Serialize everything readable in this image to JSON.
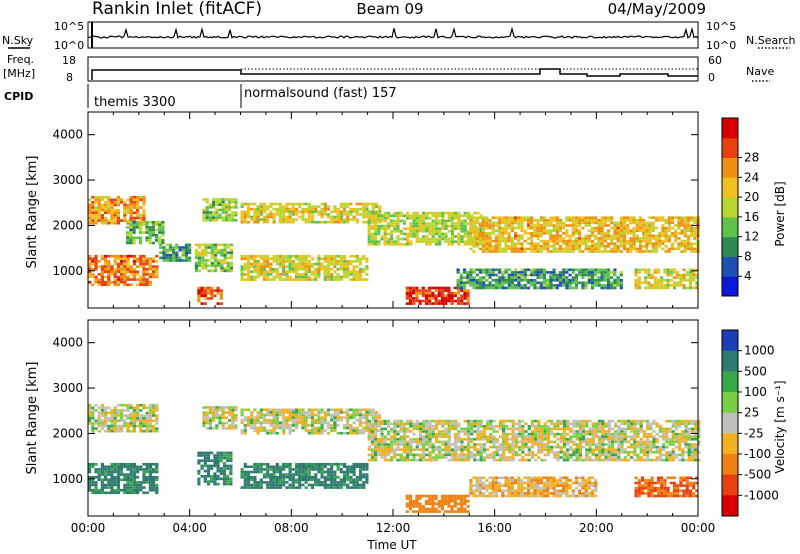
{
  "header": {
    "station": "Rankin Inlet (fitACF)",
    "beam": "Beam 09",
    "date": "04/May/2009"
  },
  "summary_panels": {
    "nsky_label": "N.Sky",
    "nsearch_label": "N.Search",
    "noise_tick_top": "10^5",
    "noise_tick_bottom": "10^0",
    "noise_tick_top_right": "10^5",
    "noise_tick_bottom_right": "10^0",
    "freq_label": "Freq.",
    "freq_unit": "[MHz]",
    "freq_tick_top": "18",
    "freq_tick_bottom": "8",
    "nave_label": "Nave",
    "nave_tick_top": "60",
    "nave_tick_bottom": "0",
    "cpid_label": "CPID",
    "cpid_modes": [
      {
        "label": "themis 3300",
        "start_hour": 0
      },
      {
        "label": "normalsound (fast) 157",
        "start_hour": 6
      }
    ]
  },
  "chart_data": [
    {
      "type": "heatmap",
      "title": "",
      "quantity": "Power",
      "xlabel": "",
      "ylabel": "Slant Range [km]",
      "xlim_hours": [
        0,
        24
      ],
      "ylim_km": [
        180,
        4500
      ],
      "yticks": [
        "1000",
        "2000",
        "3000",
        "4000"
      ],
      "colorbar": {
        "label": "Power [dB]",
        "ticks": [
          "4",
          "8",
          "12",
          "16",
          "20",
          "24",
          "28"
        ],
        "colors": [
          "#0a1ad8",
          "#1e4fb4",
          "#2f8a52",
          "#5fc24a",
          "#b8d630",
          "#f0c020",
          "#f09010",
          "#e84010",
          "#d80000"
        ]
      },
      "echo_bands": [
        {
          "t0": 0.0,
          "t1": 2.2,
          "r0": 2050,
          "r1": 2650,
          "power_db": 22
        },
        {
          "t0": 0.0,
          "t1": 2.7,
          "r0": 700,
          "r1": 1350,
          "power_db": 24
        },
        {
          "t0": 1.5,
          "t1": 3.0,
          "r0": 1600,
          "r1": 2100,
          "power_db": 12
        },
        {
          "t0": 2.8,
          "t1": 4.0,
          "r0": 1200,
          "r1": 1600,
          "power_db": 10
        },
        {
          "t0": 4.2,
          "t1": 5.6,
          "r0": 1000,
          "r1": 1600,
          "power_db": 14
        },
        {
          "t0": 4.3,
          "t1": 5.2,
          "r0": 250,
          "r1": 650,
          "power_db": 26
        },
        {
          "t0": 4.5,
          "t1": 5.8,
          "r0": 2100,
          "r1": 2600,
          "power_db": 14
        },
        {
          "t0": 6.0,
          "t1": 11.5,
          "r0": 2050,
          "r1": 2500,
          "power_db": 18
        },
        {
          "t0": 6.0,
          "t1": 11.0,
          "r0": 800,
          "r1": 1350,
          "power_db": 18
        },
        {
          "t0": 11.0,
          "t1": 15.5,
          "r0": 1600,
          "r1": 2300,
          "power_db": 16
        },
        {
          "t0": 12.5,
          "t1": 15.0,
          "r0": 300,
          "r1": 650,
          "power_db": 28
        },
        {
          "t0": 15.0,
          "t1": 24.0,
          "r0": 1400,
          "r1": 2200,
          "power_db": 20
        },
        {
          "t0": 14.5,
          "t1": 21.0,
          "r0": 600,
          "r1": 1050,
          "power_db": 10
        },
        {
          "t0": 21.5,
          "t1": 24.0,
          "r0": 600,
          "r1": 1050,
          "power_db": 18
        }
      ]
    },
    {
      "type": "heatmap",
      "title": "",
      "quantity": "Velocity",
      "xlabel": "Time UT",
      "ylabel": "Slant Range [km]",
      "xlim_hours": [
        0,
        24
      ],
      "ylim_km": [
        180,
        4500
      ],
      "xticks": [
        "00:00",
        "04:00",
        "08:00",
        "12:00",
        "16:00",
        "20:00",
        "00:00"
      ],
      "yticks": [
        "1000",
        "2000",
        "3000",
        "4000"
      ],
      "colorbar": {
        "label": "Velocity [m s⁻¹]",
        "ticks": [
          "1000",
          "500",
          "100",
          "25",
          "-25",
          "-100",
          "-500",
          "-1000"
        ],
        "colors": [
          "#1c3fb8",
          "#2f7a70",
          "#35a84a",
          "#78d040",
          "#c0c0b8",
          "#f0b020",
          "#f08010",
          "#e84010",
          "#d80000"
        ]
      },
      "echo_bands": [
        {
          "t0": 0.0,
          "t1": 2.7,
          "r0": 2050,
          "r1": 2650,
          "velocity": 0
        },
        {
          "t0": 0.0,
          "t1": 2.7,
          "r0": 700,
          "r1": 1350,
          "velocity": 300
        },
        {
          "t0": 4.3,
          "t1": 5.6,
          "r0": 900,
          "r1": 1600,
          "velocity": 300
        },
        {
          "t0": 4.5,
          "t1": 5.8,
          "r0": 2100,
          "r1": 2600,
          "velocity": 0
        },
        {
          "t0": 6.0,
          "t1": 11.5,
          "r0": 2000,
          "r1": 2550,
          "velocity": 0
        },
        {
          "t0": 6.0,
          "t1": 11.0,
          "r0": 800,
          "r1": 1350,
          "velocity": 300
        },
        {
          "t0": 11.0,
          "t1": 24.0,
          "r0": 1400,
          "r1": 2300,
          "velocity": 0
        },
        {
          "t0": 12.5,
          "t1": 15.0,
          "r0": 300,
          "r1": 650,
          "velocity": -200
        },
        {
          "t0": 15.0,
          "t1": 20.0,
          "r0": 600,
          "r1": 1050,
          "velocity": -60
        },
        {
          "t0": 21.5,
          "t1": 24.0,
          "r0": 600,
          "r1": 1050,
          "velocity": -300
        }
      ]
    }
  ]
}
